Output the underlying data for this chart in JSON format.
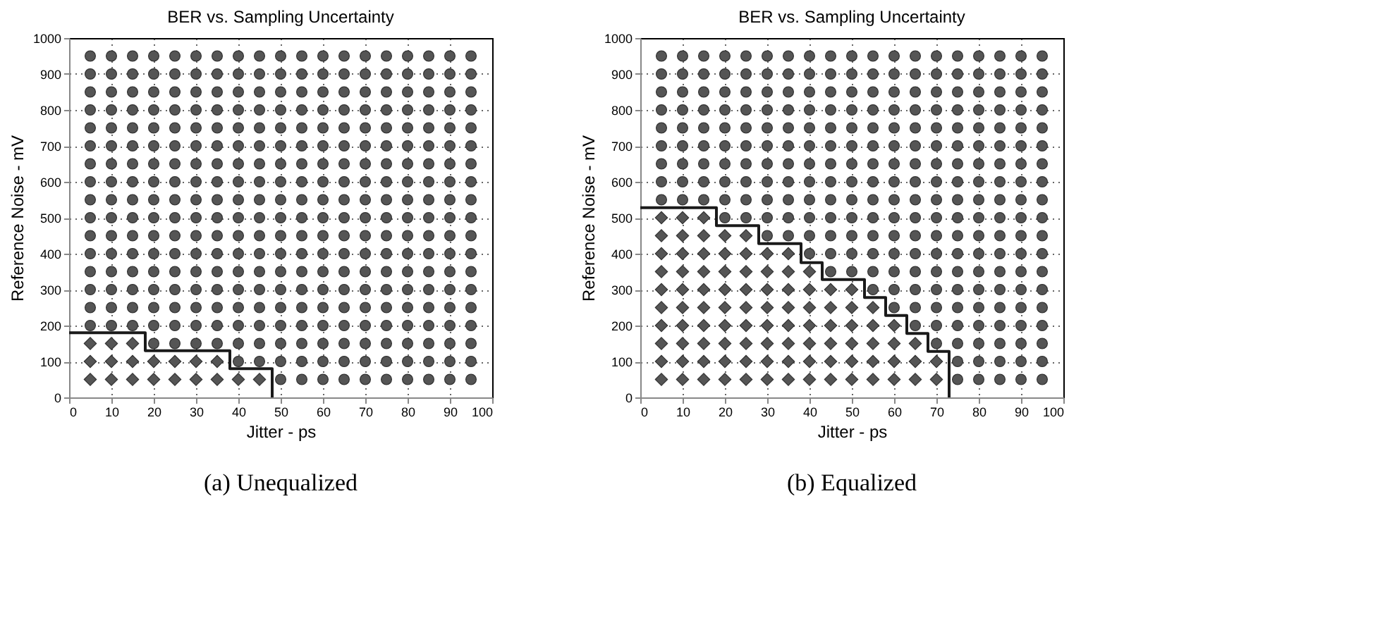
{
  "chart_data": [
    {
      "type": "scatter",
      "title": "BER vs. Sampling Uncertainty",
      "xlabel": "Jitter - ps",
      "ylabel": "Reference Noise - mV",
      "annotations": [
        "(a) Unequalized"
      ],
      "xlim": [
        0,
        100
      ],
      "ylim": [
        0,
        1000
      ],
      "xticks": [
        0,
        10,
        20,
        30,
        40,
        50,
        60,
        70,
        80,
        90,
        100
      ],
      "yticks": [
        0,
        100,
        200,
        300,
        400,
        500,
        600,
        700,
        800,
        900,
        1000
      ],
      "grid": true,
      "series": [
        {
          "marker": "diamond",
          "color": "#555555",
          "x": [
            5,
            5,
            5,
            10,
            10,
            10,
            15,
            15,
            15,
            20,
            20,
            25,
            25,
            30,
            30,
            35,
            35,
            40,
            45
          ],
          "values": [
            50,
            100,
            150,
            50,
            100,
            150,
            50,
            100,
            150,
            50,
            100,
            50,
            100,
            50,
            100,
            50,
            100,
            50,
            50
          ]
        },
        {
          "type": "scatter",
          "marker": "circle",
          "color": "#555555",
          "x": [
            5,
            5,
            5,
            5,
            5,
            5,
            5,
            5,
            5,
            5,
            5,
            5,
            5,
            5,
            5,
            5
          ],
          "values": [
            200,
            250,
            300,
            350,
            400,
            450,
            500,
            550,
            600,
            650,
            700,
            750,
            800,
            850,
            900,
            950
          ]
        },
        {
          "type": "scatter",
          "marker": "circle",
          "color": "#555555",
          "x": [
            10,
            10,
            10,
            10,
            10,
            10,
            10,
            10,
            10,
            10,
            10,
            10,
            10,
            10,
            10,
            10
          ],
          "values": [
            200,
            250,
            300,
            350,
            400,
            450,
            500,
            550,
            600,
            650,
            700,
            750,
            800,
            850,
            900,
            950
          ]
        },
        {
          "type": "scatter",
          "marker": "circle",
          "color": "#555555",
          "x": [
            15,
            15,
            15,
            15,
            15,
            15,
            15,
            15,
            15,
            15,
            15,
            15,
            15,
            15,
            15,
            15
          ],
          "values": [
            200,
            250,
            300,
            350,
            400,
            450,
            500,
            550,
            600,
            650,
            700,
            750,
            800,
            850,
            900,
            950
          ]
        },
        {
          "type": "scatter",
          "marker": "circle",
          "color": "#555555",
          "x": [
            20,
            20,
            20,
            20,
            20,
            20,
            20,
            20,
            20,
            20,
            20,
            20,
            20,
            20,
            20,
            20,
            20
          ],
          "values": [
            150,
            200,
            250,
            300,
            350,
            400,
            450,
            500,
            550,
            600,
            650,
            700,
            750,
            800,
            850,
            900,
            950
          ]
        },
        {
          "type": "scatter",
          "marker": "circle",
          "color": "#555555",
          "x": [
            25,
            25,
            25,
            25,
            25,
            25,
            25,
            25,
            25,
            25,
            25,
            25,
            25,
            25,
            25,
            25,
            25
          ],
          "values": [
            150,
            200,
            250,
            300,
            350,
            400,
            450,
            500,
            550,
            600,
            650,
            700,
            750,
            800,
            850,
            900,
            950
          ]
        },
        {
          "type": "scatter",
          "marker": "circle",
          "color": "#555555",
          "x": [
            30,
            30,
            30,
            30,
            30,
            30,
            30,
            30,
            30,
            30,
            30,
            30,
            30,
            30,
            30,
            30,
            30
          ],
          "values": [
            150,
            200,
            250,
            300,
            350,
            400,
            450,
            500,
            550,
            600,
            650,
            700,
            750,
            800,
            850,
            900,
            950
          ]
        },
        {
          "type": "scatter",
          "marker": "circle",
          "color": "#555555",
          "x": [
            35,
            35,
            35,
            35,
            35,
            35,
            35,
            35,
            35,
            35,
            35,
            35,
            35,
            35,
            35,
            35,
            35
          ],
          "values": [
            150,
            200,
            250,
            300,
            350,
            400,
            450,
            500,
            550,
            600,
            650,
            700,
            750,
            800,
            850,
            900,
            950
          ]
        },
        {
          "type": "scatter",
          "marker": "circle",
          "color": "#555555",
          "x": [
            40,
            40,
            40,
            40,
            40,
            40,
            40,
            40,
            40,
            40,
            40,
            40,
            40,
            40,
            40,
            40,
            40,
            40
          ],
          "values": [
            100,
            150,
            200,
            250,
            300,
            350,
            400,
            450,
            500,
            550,
            600,
            650,
            700,
            750,
            800,
            850,
            900,
            950
          ]
        },
        {
          "type": "scatter",
          "marker": "circle",
          "color": "#555555",
          "x": [
            45,
            45,
            45,
            45,
            45,
            45,
            45,
            45,
            45,
            45,
            45,
            45,
            45,
            45,
            45,
            45,
            45,
            45
          ],
          "values": [
            100,
            150,
            200,
            250,
            300,
            350,
            400,
            450,
            500,
            550,
            600,
            650,
            700,
            750,
            800,
            850,
            900,
            950
          ]
        },
        {
          "type": "scatter",
          "marker": "circle",
          "color": "#555555",
          "x": [
            50,
            50,
            50,
            50,
            50,
            50,
            50,
            50,
            50,
            50,
            50,
            50,
            50,
            50,
            50,
            50,
            50,
            50,
            50
          ],
          "values": [
            50,
            100,
            150,
            200,
            250,
            300,
            350,
            400,
            450,
            500,
            550,
            600,
            650,
            700,
            750,
            800,
            850,
            900,
            950
          ]
        },
        {
          "type": "scatter",
          "marker": "circle",
          "color": "#555555",
          "x": [
            55,
            55,
            55,
            55,
            55,
            55,
            55,
            55,
            55,
            55,
            55,
            55,
            55,
            55,
            55,
            55,
            55,
            55,
            55
          ],
          "values": [
            50,
            100,
            150,
            200,
            250,
            300,
            350,
            400,
            450,
            500,
            550,
            600,
            650,
            700,
            750,
            800,
            850,
            900,
            950
          ]
        },
        {
          "type": "scatter",
          "marker": "circle",
          "color": "#555555",
          "x": [
            60,
            60,
            60,
            60,
            60,
            60,
            60,
            60,
            60,
            60,
            60,
            60,
            60,
            60,
            60,
            60,
            60,
            60,
            60
          ],
          "values": [
            50,
            100,
            150,
            200,
            250,
            300,
            350,
            400,
            450,
            500,
            550,
            600,
            650,
            700,
            750,
            800,
            850,
            900,
            950
          ]
        },
        {
          "type": "scatter",
          "marker": "circle",
          "color": "#555555",
          "x": [
            65,
            65,
            65,
            65,
            65,
            65,
            65,
            65,
            65,
            65,
            65,
            65,
            65,
            65,
            65,
            65,
            65,
            65,
            65
          ],
          "values": [
            50,
            100,
            150,
            200,
            250,
            300,
            350,
            400,
            450,
            500,
            550,
            600,
            650,
            700,
            750,
            800,
            850,
            900,
            950
          ]
        },
        {
          "type": "scatter",
          "marker": "circle",
          "color": "#555555",
          "x": [
            70,
            70,
            70,
            70,
            70,
            70,
            70,
            70,
            70,
            70,
            70,
            70,
            70,
            70,
            70,
            70,
            70,
            70,
            70
          ],
          "values": [
            50,
            100,
            150,
            200,
            250,
            300,
            350,
            400,
            450,
            500,
            550,
            600,
            650,
            700,
            750,
            800,
            850,
            900,
            950
          ]
        },
        {
          "type": "scatter",
          "marker": "circle",
          "color": "#555555",
          "x": [
            75,
            75,
            75,
            75,
            75,
            75,
            75,
            75,
            75,
            75,
            75,
            75,
            75,
            75,
            75,
            75,
            75,
            75,
            75
          ],
          "values": [
            50,
            100,
            150,
            200,
            250,
            300,
            350,
            400,
            450,
            500,
            550,
            600,
            650,
            700,
            750,
            800,
            850,
            900,
            950
          ]
        },
        {
          "type": "scatter",
          "marker": "circle",
          "color": "#555555",
          "x": [
            80,
            80,
            80,
            80,
            80,
            80,
            80,
            80,
            80,
            80,
            80,
            80,
            80,
            80,
            80,
            80,
            80,
            80,
            80
          ],
          "values": [
            50,
            100,
            150,
            200,
            250,
            300,
            350,
            400,
            450,
            500,
            550,
            600,
            650,
            700,
            750,
            800,
            850,
            900,
            950
          ]
        },
        {
          "type": "scatter",
          "marker": "circle",
          "color": "#555555",
          "x": [
            85,
            85,
            85,
            85,
            85,
            85,
            85,
            85,
            85,
            85,
            85,
            85,
            85,
            85,
            85,
            85,
            85,
            85,
            85
          ],
          "values": [
            50,
            100,
            150,
            200,
            250,
            300,
            350,
            400,
            450,
            500,
            550,
            600,
            650,
            700,
            750,
            800,
            850,
            900,
            950
          ]
        },
        {
          "type": "scatter",
          "marker": "circle",
          "color": "#555555",
          "x": [
            90,
            90,
            90,
            90,
            90,
            90,
            90,
            90,
            90,
            90,
            90,
            90,
            90,
            90,
            90,
            90,
            90,
            90,
            90
          ],
          "values": [
            50,
            100,
            150,
            200,
            250,
            300,
            350,
            400,
            450,
            500,
            550,
            600,
            650,
            700,
            750,
            800,
            850,
            900,
            950
          ]
        },
        {
          "type": "scatter",
          "marker": "circle",
          "color": "#555555",
          "x": [
            95,
            95,
            95,
            95,
            95,
            95,
            95,
            95,
            95,
            95,
            95,
            95,
            95,
            95,
            95,
            95,
            95,
            95,
            95
          ],
          "values": [
            50,
            100,
            150,
            200,
            250,
            300,
            350,
            400,
            450,
            500,
            550,
            600,
            650,
            700,
            750,
            800,
            850,
            900,
            950
          ]
        },
        {
          "type": "line",
          "line_style": "solid",
          "color": "#1a1a1a",
          "x": [
            0,
            18,
            18,
            38,
            38,
            48,
            48
          ],
          "values": [
            180,
            180,
            130,
            130,
            80,
            80,
            0
          ]
        }
      ]
    },
    {
      "type": "scatter",
      "title": "BER vs. Sampling Uncertainty",
      "xlabel": "Jitter - ps",
      "ylabel": "Reference Noise - mV",
      "annotations": [
        "(b) Equalized"
      ],
      "xlim": [
        0,
        100
      ],
      "ylim": [
        0,
        1000
      ],
      "xticks": [
        0,
        10,
        20,
        30,
        40,
        50,
        60,
        70,
        80,
        90,
        100
      ],
      "yticks": [
        0,
        100,
        200,
        300,
        400,
        500,
        600,
        700,
        800,
        900,
        1000
      ],
      "grid": true,
      "series": [
        {
          "marker": "diamond",
          "color": "#555555",
          "x": [
            5,
            5,
            5,
            5,
            5,
            5,
            5,
            5,
            5,
            5,
            10,
            10,
            10,
            10,
            10,
            10,
            10,
            10,
            10,
            10,
            15,
            15,
            15,
            15,
            15,
            15,
            15,
            15,
            15,
            15
          ],
          "values": [
            50,
            100,
            150,
            200,
            250,
            300,
            350,
            400,
            450,
            500,
            50,
            100,
            150,
            200,
            250,
            300,
            350,
            400,
            450,
            500,
            50,
            100,
            150,
            200,
            250,
            300,
            350,
            400,
            450,
            500
          ]
        },
        {
          "type": "scatter",
          "marker": "diamond",
          "color": "#555555",
          "x": [
            20,
            20,
            20,
            20,
            20,
            20,
            20,
            20,
            20,
            25,
            25,
            25,
            25,
            25,
            25,
            25,
            25,
            25
          ],
          "values": [
            50,
            100,
            150,
            200,
            250,
            300,
            350,
            400,
            450,
            50,
            100,
            150,
            200,
            250,
            300,
            350,
            400,
            450
          ]
        },
        {
          "type": "scatter",
          "marker": "diamond",
          "color": "#555555",
          "x": [
            30,
            30,
            30,
            30,
            30,
            30,
            30,
            30,
            35,
            35,
            35,
            35,
            35,
            35,
            35,
            35,
            40,
            40,
            40,
            40,
            40,
            40,
            40
          ],
          "values": [
            50,
            100,
            150,
            200,
            250,
            300,
            350,
            400,
            50,
            100,
            150,
            200,
            250,
            300,
            350,
            400,
            50,
            100,
            150,
            200,
            250,
            300,
            350
          ]
        },
        {
          "type": "scatter",
          "marker": "diamond",
          "color": "#555555",
          "x": [
            45,
            45,
            45,
            45,
            45,
            45,
            50,
            50,
            50,
            50,
            50,
            50,
            55,
            55,
            55,
            55,
            55,
            60,
            60,
            60,
            60,
            65,
            65,
            65,
            70,
            70
          ],
          "values": [
            50,
            100,
            150,
            200,
            250,
            300,
            50,
            100,
            150,
            200,
            250,
            300,
            50,
            100,
            150,
            200,
            250,
            50,
            100,
            150,
            200,
            50,
            100,
            150,
            50,
            100
          ]
        },
        {
          "type": "scatter",
          "marker": "circle",
          "color": "#555555",
          "x": [
            5,
            5,
            5,
            5,
            5,
            5,
            5,
            5,
            10,
            10,
            10,
            10,
            10,
            10,
            10,
            10,
            15,
            15,
            15,
            15,
            15,
            15,
            15,
            15
          ],
          "values": [
            550,
            600,
            650,
            700,
            750,
            800,
            850,
            900,
            550,
            600,
            650,
            700,
            750,
            800,
            850,
            900,
            550,
            600,
            650,
            700,
            750,
            800,
            850,
            900
          ]
        },
        {
          "type": "scatter",
          "marker": "circle",
          "color": "#555555",
          "x": [
            5,
            10,
            15
          ],
          "values": [
            950,
            950,
            950
          ]
        },
        {
          "type": "scatter",
          "marker": "circle",
          "color": "#555555",
          "x": [
            20,
            20,
            20,
            20,
            20,
            20,
            20,
            20,
            20,
            20,
            25,
            25,
            25,
            25,
            25,
            25,
            25,
            25,
            25,
            25
          ],
          "values": [
            500,
            550,
            600,
            650,
            700,
            750,
            800,
            850,
            900,
            950,
            500,
            550,
            600,
            650,
            700,
            750,
            800,
            850,
            900,
            950
          ]
        },
        {
          "type": "scatter",
          "marker": "circle",
          "color": "#555555",
          "x": [
            30,
            30,
            30,
            30,
            30,
            30,
            30,
            30,
            30,
            30,
            30,
            35,
            35,
            35,
            35,
            35,
            35,
            35,
            35,
            35,
            35,
            35
          ],
          "values": [
            450,
            500,
            550,
            600,
            650,
            700,
            750,
            800,
            850,
            900,
            950,
            450,
            500,
            550,
            600,
            650,
            700,
            750,
            800,
            850,
            900,
            950
          ]
        },
        {
          "type": "scatter",
          "marker": "circle",
          "color": "#555555",
          "x": [
            40,
            40,
            40,
            40,
            40,
            40,
            40,
            40,
            40,
            40,
            40,
            40
          ],
          "values": [
            400,
            450,
            500,
            550,
            600,
            650,
            700,
            750,
            800,
            850,
            900,
            950
          ]
        },
        {
          "type": "scatter",
          "marker": "circle",
          "color": "#555555",
          "x": [
            45,
            45,
            45,
            45,
            45,
            45,
            45,
            45,
            45,
            45,
            45,
            45,
            45,
            50,
            50,
            50,
            50,
            50,
            50,
            50,
            50,
            50,
            50,
            50,
            50,
            50
          ],
          "values": [
            350,
            400,
            450,
            500,
            550,
            600,
            650,
            700,
            750,
            800,
            850,
            900,
            950,
            350,
            400,
            450,
            500,
            550,
            600,
            650,
            700,
            750,
            800,
            850,
            900,
            950
          ]
        },
        {
          "type": "scatter",
          "marker": "circle",
          "color": "#555555",
          "x": [
            55,
            55,
            55,
            55,
            55,
            55,
            55,
            55,
            55,
            55,
            55,
            55,
            55,
            55
          ],
          "values": [
            300,
            350,
            400,
            450,
            500,
            550,
            600,
            650,
            700,
            750,
            800,
            850,
            900,
            950
          ]
        },
        {
          "type": "scatter",
          "marker": "circle",
          "color": "#555555",
          "x": [
            60,
            60,
            60,
            60,
            60,
            60,
            60,
            60,
            60,
            60,
            60,
            60,
            60,
            60,
            60
          ],
          "values": [
            250,
            300,
            350,
            400,
            450,
            500,
            550,
            600,
            650,
            700,
            750,
            800,
            850,
            900,
            950
          ]
        },
        {
          "type": "scatter",
          "marker": "circle",
          "color": "#555555",
          "x": [
            65,
            65,
            65,
            65,
            65,
            65,
            65,
            65,
            65,
            65,
            65,
            65,
            65,
            65,
            65,
            65
          ],
          "values": [
            200,
            250,
            300,
            350,
            400,
            450,
            500,
            550,
            600,
            650,
            700,
            750,
            800,
            850,
            900,
            950
          ]
        },
        {
          "type": "scatter",
          "marker": "circle",
          "color": "#555555",
          "x": [
            70,
            70,
            70,
            70,
            70,
            70,
            70,
            70,
            70,
            70,
            70,
            70,
            70,
            70,
            70,
            70,
            70
          ],
          "values": [
            150,
            200,
            250,
            300,
            350,
            400,
            450,
            500,
            550,
            600,
            650,
            700,
            750,
            800,
            850,
            900,
            950
          ]
        },
        {
          "type": "scatter",
          "marker": "circle",
          "color": "#555555",
          "x": [
            75,
            75,
            75,
            75,
            75,
            75,
            75,
            75,
            75,
            75,
            75,
            75,
            75,
            75,
            75,
            75,
            75,
            75,
            75
          ],
          "values": [
            50,
            100,
            150,
            200,
            250,
            300,
            350,
            400,
            450,
            500,
            550,
            600,
            650,
            700,
            750,
            800,
            850,
            900,
            950
          ]
        },
        {
          "type": "scatter",
          "marker": "circle",
          "color": "#555555",
          "x": [
            80,
            80,
            80,
            80,
            80,
            80,
            80,
            80,
            80,
            80,
            80,
            80,
            80,
            80,
            80,
            80,
            80,
            80,
            80
          ],
          "values": [
            50,
            100,
            150,
            200,
            250,
            300,
            350,
            400,
            450,
            500,
            550,
            600,
            650,
            700,
            750,
            800,
            850,
            900,
            950
          ]
        },
        {
          "type": "scatter",
          "marker": "circle",
          "color": "#555555",
          "x": [
            85,
            85,
            85,
            85,
            85,
            85,
            85,
            85,
            85,
            85,
            85,
            85,
            85,
            85,
            85,
            85,
            85,
            85,
            85
          ],
          "values": [
            50,
            100,
            150,
            200,
            250,
            300,
            350,
            400,
            450,
            500,
            550,
            600,
            650,
            700,
            750,
            800,
            850,
            900,
            950
          ]
        },
        {
          "type": "scatter",
          "marker": "circle",
          "color": "#555555",
          "x": [
            90,
            90,
            90,
            90,
            90,
            90,
            90,
            90,
            90,
            90,
            90,
            90,
            90,
            90,
            90,
            90,
            90,
            90,
            90
          ],
          "values": [
            50,
            100,
            150,
            200,
            250,
            300,
            350,
            400,
            450,
            500,
            550,
            600,
            650,
            700,
            750,
            800,
            850,
            900,
            950
          ]
        },
        {
          "type": "scatter",
          "marker": "circle",
          "color": "#555555",
          "x": [
            95,
            95,
            95,
            95,
            95,
            95,
            95,
            95,
            95,
            95,
            95,
            95,
            95,
            95,
            95,
            95,
            95,
            95,
            95
          ],
          "values": [
            50,
            100,
            150,
            200,
            250,
            300,
            350,
            400,
            450,
            500,
            550,
            600,
            650,
            700,
            750,
            800,
            850,
            900,
            950
          ]
        },
        {
          "type": "line",
          "line_style": "solid",
          "color": "#1a1a1a",
          "x": [
            0,
            18,
            18,
            28,
            28,
            38,
            38,
            43,
            43,
            53,
            53,
            58,
            58,
            63,
            63,
            68,
            68,
            73,
            73
          ],
          "values": [
            528,
            528,
            478,
            478,
            428,
            428,
            375,
            375,
            328,
            328,
            278,
            278,
            228,
            228,
            178,
            178,
            128,
            128,
            0
          ]
        }
      ]
    }
  ]
}
